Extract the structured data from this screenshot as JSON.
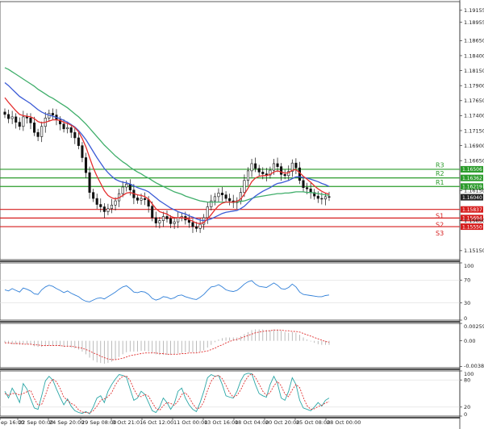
{
  "chart_data": {
    "type": "candlestick",
    "x_ticks": [
      "ep 16:00",
      "22 Sep 00:00",
      "24 Sep 20:00",
      "29 Sep 08:00",
      "3 Oct 21:01",
      "6 Oct 12:00",
      "11 Oct 00:00",
      "13 Oct 16:00",
      "18 Oct 04:00",
      "20 Oct 20:00",
      "25 Oct 08:00",
      "28 Oct 00:00"
    ],
    "main_y_ticks": [
      "1.19155",
      "1.18955",
      "1.18650",
      "1.18400",
      "1.18150",
      "1.17900",
      "1.17650",
      "1.17400",
      "1.17150",
      "1.16900",
      "1.16650",
      "1.16150",
      "1.15650",
      "1.15150"
    ],
    "price_ylim": [
      1.15,
      1.193
    ],
    "current_price": "1.16040",
    "levels": [
      {
        "label": "R3",
        "value": 1.16506,
        "badge": "1.16506",
        "color": "#2a9b2a"
      },
      {
        "label": "R2",
        "value": 1.16362,
        "badge": "1.16362",
        "color": "#2a9b2a"
      },
      {
        "label": "R1",
        "value": 1.16219,
        "badge": "1.16219",
        "color": "#2a9b2a"
      },
      {
        "label": "S1",
        "value": 1.15837,
        "badge": "1.15837",
        "color": "#d61e1e"
      },
      {
        "label": "S2",
        "value": 1.15694,
        "badge": "1.15694",
        "color": "#d61e1e"
      },
      {
        "label": "S3",
        "value": 1.1555,
        "badge": "1.15550",
        "color": "#d61e1e"
      }
    ],
    "close_series": [
      1.1742,
      1.1735,
      1.1738,
      1.1729,
      1.1722,
      1.1738,
      1.1736,
      1.1728,
      1.1712,
      1.1705,
      1.1722,
      1.1736,
      1.1744,
      1.1741,
      1.1733,
      1.1726,
      1.1718,
      1.172,
      1.1712,
      1.1703,
      1.169,
      1.167,
      1.1645,
      1.1612,
      1.1602,
      1.1592,
      1.1588,
      1.158,
      1.1585,
      1.1591,
      1.1598,
      1.161,
      1.1621,
      1.1626,
      1.1616,
      1.1603,
      1.1599,
      1.1602,
      1.16,
      1.1589,
      1.157,
      1.1561,
      1.1565,
      1.1572,
      1.1568,
      1.156,
      1.1563,
      1.157,
      1.1572,
      1.1566,
      1.1562,
      1.1555,
      1.1552,
      1.1559,
      1.157,
      1.1588,
      1.1598,
      1.1605,
      1.1611,
      1.1608,
      1.1602,
      1.1598,
      1.1595,
      1.1598,
      1.1612,
      1.1632,
      1.1648,
      1.166,
      1.1652,
      1.1646,
      1.1643,
      1.1641,
      1.1649,
      1.166,
      1.1655,
      1.1642,
      1.164,
      1.1647,
      1.1661,
      1.1653,
      1.1632,
      1.162,
      1.1618,
      1.1612,
      1.1606,
      1.1602,
      1.1601,
      1.1605,
      1.1604
    ],
    "ema_fast": [
      1.177,
      1.1762,
      1.1755,
      1.1748,
      1.1742,
      1.174,
      1.1739,
      1.1738,
      1.1735,
      1.173,
      1.1728,
      1.1729,
      1.1731,
      1.1733,
      1.1733,
      1.1732,
      1.1729,
      1.1727,
      1.1724,
      1.172,
      1.1713,
      1.1702,
      1.1688,
      1.167,
      1.1653,
      1.1639,
      1.1627,
      1.1615,
      1.1607,
      1.1603,
      1.1601,
      1.1603,
      1.1607,
      1.1611,
      1.1612,
      1.161,
      1.1608,
      1.1607,
      1.1605,
      1.1601,
      1.1593,
      1.1585,
      1.158,
      1.1578,
      1.1576,
      1.1572,
      1.157,
      1.157,
      1.157,
      1.1569,
      1.1567,
      1.1564,
      1.1561,
      1.156,
      1.1562,
      1.1568,
      1.1575,
      1.1583,
      1.159,
      1.1594,
      1.1596,
      1.1596,
      1.1596,
      1.1597,
      1.1601,
      1.1609,
      1.1619,
      1.163,
      1.1636,
      1.1639,
      1.164,
      1.164,
      1.1642,
      1.1646,
      1.1648,
      1.1646,
      1.1644,
      1.1645,
      1.1649,
      1.165,
      1.1645,
      1.1639,
      1.1634,
      1.1629,
      1.1623,
      1.1618,
      1.1614,
      1.1611,
      1.1609
    ],
    "ema_mid": [
      1.1795,
      1.179,
      1.1784,
      1.1778,
      1.1772,
      1.1768,
      1.1764,
      1.176,
      1.1755,
      1.175,
      1.1746,
      1.1743,
      1.1741,
      1.1739,
      1.1737,
      1.1735,
      1.1732,
      1.1729,
      1.1725,
      1.1721,
      1.1715,
      1.1708,
      1.17,
      1.169,
      1.168,
      1.167,
      1.1661,
      1.1652,
      1.1645,
      1.1639,
      1.1634,
      1.1631,
      1.1629,
      1.1628,
      1.1626,
      1.1623,
      1.162,
      1.1618,
      1.1616,
      1.1613,
      1.1608,
      1.1603,
      1.1598,
      1.1594,
      1.159,
      1.1586,
      1.1583,
      1.158,
      1.1578,
      1.1576,
      1.1573,
      1.1571,
      1.1568,
      1.1566,
      1.1565,
      1.1566,
      1.1568,
      1.1571,
      1.1574,
      1.1577,
      1.1579,
      1.158,
      1.1581,
      1.1582,
      1.1585,
      1.1589,
      1.1595,
      1.1601,
      1.1606,
      1.161,
      1.1614,
      1.1617,
      1.162,
      1.1624,
      1.1627,
      1.1628,
      1.163,
      1.1632,
      1.1635,
      1.1638,
      1.1638,
      1.1637,
      1.1636,
      1.1634,
      1.1632,
      1.163,
      1.1627,
      1.1625,
      1.1622
    ],
    "ema_slow": [
      1.182,
      1.1817,
      1.1813,
      1.1809,
      1.1805,
      1.1801,
      1.1797,
      1.1793,
      1.1789,
      1.1784,
      1.178,
      1.1776,
      1.1772,
      1.1769,
      1.1765,
      1.1761,
      1.1757,
      1.1753,
      1.1748,
      1.1743,
      1.1738,
      1.1732,
      1.1726,
      1.1719,
      1.1712,
      1.1705,
      1.1698,
      1.1691,
      1.1685,
      1.1679,
      1.1673,
      1.1668,
      1.1663,
      1.1659,
      1.1654,
      1.165,
      1.1646,
      1.1643,
      1.1639,
      1.1636,
      1.1632,
      1.1628,
      1.1625,
      1.1622,
      1.1619,
      1.1616,
      1.1613,
      1.1611,
      1.1609,
      1.1606,
      1.1604,
      1.1602,
      1.16,
      1.1598,
      1.1597,
      1.1596,
      1.1596,
      1.1596,
      1.1596,
      1.1596,
      1.1596,
      1.1596,
      1.1596,
      1.1596,
      1.1597,
      1.1598,
      1.16,
      1.1602,
      1.1604,
      1.1605,
      1.1606,
      1.1607,
      1.1608,
      1.1609,
      1.161,
      1.161,
      1.1611,
      1.1611,
      1.1612,
      1.1613,
      1.1613,
      1.1613,
      1.1612,
      1.1612,
      1.1611,
      1.161,
      1.1609,
      1.1608,
      1.1607
    ],
    "colors": {
      "ema_fast": "#e53030",
      "ema_mid": "#3b5bd6",
      "ema_slow": "#3fae6a",
      "candle_up": "#111111",
      "candle_down": "#111111",
      "current_badge": "#222222",
      "level_green": "#2a9b2a",
      "level_red": "#d61e1e"
    },
    "rsi": {
      "y_ticks": [
        "100",
        "70",
        "30",
        "0"
      ],
      "ylim": [
        0,
        100
      ],
      "values": [
        53,
        51,
        55,
        52,
        49,
        56,
        54,
        51,
        46,
        45,
        53,
        58,
        61,
        59,
        55,
        52,
        48,
        51,
        47,
        44,
        41,
        36,
        33,
        32,
        35,
        38,
        39,
        37,
        41,
        45,
        49,
        54,
        58,
        60,
        55,
        49,
        48,
        50,
        49,
        45,
        38,
        35,
        37,
        41,
        40,
        37,
        39,
        43,
        44,
        41,
        39,
        37,
        36,
        40,
        45,
        52,
        58,
        59,
        62,
        58,
        53,
        51,
        50,
        52,
        57,
        63,
        67,
        69,
        63,
        59,
        58,
        57,
        61,
        65,
        61,
        55,
        54,
        57,
        63,
        58,
        49,
        45,
        44,
        43,
        42,
        41,
        41,
        43,
        44
      ]
    },
    "macd": {
      "y_ticks": [
        "0.002595",
        "0.00",
        "-0.003828"
      ],
      "ylim": [
        -0.004,
        0.0026
      ],
      "hist": [
        -0.0003,
        -0.0004,
        -0.0005,
        -0.0005,
        -0.0006,
        -0.0005,
        -0.0005,
        -0.0006,
        -0.0008,
        -0.0009,
        -0.0009,
        -0.0008,
        -0.0007,
        -0.0007,
        -0.0007,
        -0.0008,
        -0.0009,
        -0.0009,
        -0.001,
        -0.0011,
        -0.0013,
        -0.0016,
        -0.002,
        -0.0025,
        -0.0029,
        -0.0032,
        -0.0033,
        -0.0034,
        -0.0033,
        -0.0031,
        -0.0028,
        -0.0024,
        -0.002,
        -0.0017,
        -0.0016,
        -0.0016,
        -0.0016,
        -0.0015,
        -0.0015,
        -0.0016,
        -0.0018,
        -0.002,
        -0.0021,
        -0.0021,
        -0.0021,
        -0.0021,
        -0.002,
        -0.0019,
        -0.0018,
        -0.0017,
        -0.0017,
        -0.0017,
        -0.0017,
        -0.0016,
        -0.0014,
        -0.001,
        -0.0006,
        -0.0002,
        0.0002,
        0.0004,
        0.0005,
        0.0005,
        0.0005,
        0.0005,
        0.0007,
        0.001,
        0.0013,
        0.0016,
        0.0017,
        0.0017,
        0.0017,
        0.0016,
        0.0016,
        0.0017,
        0.0017,
        0.0015,
        0.0013,
        0.0012,
        0.0013,
        0.0012,
        0.0009,
        0.0005,
        0.0002,
        -0.0001,
        -0.0003,
        -0.0005,
        -0.0006,
        -0.0006,
        -0.0006
      ],
      "signal": [
        -0.0003,
        -0.0003,
        -0.0004,
        -0.0004,
        -0.0004,
        -0.0005,
        -0.0005,
        -0.0005,
        -0.0006,
        -0.0006,
        -0.0007,
        -0.0007,
        -0.0007,
        -0.0007,
        -0.0007,
        -0.0007,
        -0.0008,
        -0.0008,
        -0.0008,
        -0.0009,
        -0.001,
        -0.0011,
        -0.0013,
        -0.0015,
        -0.0018,
        -0.002,
        -0.0023,
        -0.0025,
        -0.0027,
        -0.0028,
        -0.0028,
        -0.0027,
        -0.0026,
        -0.0024,
        -0.0022,
        -0.0021,
        -0.002,
        -0.0019,
        -0.0018,
        -0.0018,
        -0.0018,
        -0.0018,
        -0.0019,
        -0.0019,
        -0.002,
        -0.002,
        -0.002,
        -0.002,
        -0.0019,
        -0.0019,
        -0.0018,
        -0.0018,
        -0.0018,
        -0.0017,
        -0.0016,
        -0.0015,
        -0.0013,
        -0.0011,
        -0.0008,
        -0.0006,
        -0.0003,
        -0.0001,
        0.0001,
        0.0002,
        0.0004,
        0.0006,
        0.0008,
        0.001,
        0.0012,
        0.0013,
        0.0014,
        0.0015,
        0.0015,
        0.0016,
        0.0016,
        0.0016,
        0.0015,
        0.0015,
        0.0014,
        0.0014,
        0.0013,
        0.0011,
        0.0009,
        0.0007,
        0.0005,
        0.0003,
        0.0001,
        -0.0001,
        -0.0002
      ]
    },
    "stoch": {
      "y_ticks": [
        "100",
        "80",
        "20",
        "0"
      ],
      "ylim": [
        0,
        100
      ],
      "k": [
        55,
        40,
        62,
        48,
        30,
        72,
        60,
        38,
        18,
        15,
        45,
        78,
        88,
        80,
        60,
        42,
        25,
        38,
        22,
        12,
        8,
        6,
        10,
        5,
        20,
        40,
        45,
        30,
        55,
        70,
        82,
        92,
        90,
        86,
        60,
        35,
        40,
        55,
        48,
        30,
        12,
        8,
        20,
        40,
        30,
        15,
        28,
        55,
        62,
        40,
        25,
        15,
        10,
        30,
        55,
        85,
        92,
        88,
        90,
        70,
        45,
        42,
        40,
        55,
        78,
        92,
        95,
        94,
        70,
        50,
        45,
        42,
        70,
        88,
        72,
        40,
        35,
        55,
        85,
        70,
        35,
        18,
        15,
        12,
        20,
        30,
        22,
        35,
        40
      ],
      "d": [
        50,
        46,
        50,
        50,
        47,
        50,
        54,
        57,
        39,
        24,
        26,
        46,
        70,
        82,
        76,
        61,
        42,
        35,
        28,
        24,
        14,
        9,
        8,
        7,
        12,
        22,
        35,
        38,
        43,
        52,
        69,
        81,
        88,
        89,
        79,
        60,
        45,
        43,
        48,
        44,
        30,
        17,
        13,
        23,
        30,
        28,
        24,
        33,
        48,
        52,
        42,
        27,
        17,
        18,
        32,
        57,
        77,
        88,
        90,
        83,
        68,
        52,
        42,
        46,
        58,
        75,
        88,
        94,
        86,
        71,
        55,
        46,
        52,
        67,
        77,
        67,
        49,
        43,
        58,
        70,
        63,
        41,
        23,
        15,
        16,
        21,
        24,
        29,
        32
      ]
    }
  }
}
